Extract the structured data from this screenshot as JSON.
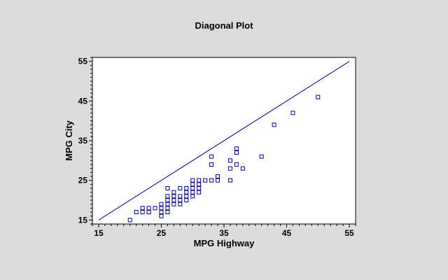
{
  "chart_data": {
    "type": "scatter",
    "title": "Diagonal Plot",
    "xlabel": "MPG Highway",
    "ylabel": "MPG City",
    "xlim": [
      14,
      56
    ],
    "ylim": [
      14,
      56
    ],
    "xticks": [
      "15",
      "25",
      "35",
      "45",
      "55"
    ],
    "yticks": [
      "15",
      "25",
      "35",
      "45",
      "55"
    ],
    "grid": false,
    "legend": "none",
    "diagonal": {
      "from": [
        15,
        15
      ],
      "to": [
        55,
        55
      ]
    },
    "series": [
      {
        "points": [
          [
            20,
            15
          ],
          [
            21,
            17
          ],
          [
            22,
            17
          ],
          [
            22,
            18
          ],
          [
            23,
            17
          ],
          [
            23,
            18
          ],
          [
            24,
            18
          ],
          [
            25,
            16
          ],
          [
            25,
            17
          ],
          [
            25,
            18
          ],
          [
            25,
            19
          ],
          [
            26,
            17
          ],
          [
            26,
            18
          ],
          [
            26,
            19
          ],
          [
            26,
            20
          ],
          [
            26,
            21
          ],
          [
            26,
            23
          ],
          [
            27,
            19
          ],
          [
            27,
            20
          ],
          [
            27,
            21
          ],
          [
            27,
            22
          ],
          [
            28,
            19
          ],
          [
            28,
            20
          ],
          [
            28,
            21
          ],
          [
            28,
            23
          ],
          [
            29,
            20
          ],
          [
            29,
            21
          ],
          [
            29,
            22
          ],
          [
            29,
            23
          ],
          [
            30,
            21
          ],
          [
            30,
            22
          ],
          [
            30,
            23
          ],
          [
            30,
            24
          ],
          [
            30,
            25
          ],
          [
            31,
            22
          ],
          [
            31,
            23
          ],
          [
            31,
            24
          ],
          [
            31,
            25
          ],
          [
            32,
            25
          ],
          [
            33,
            25
          ],
          [
            33,
            29
          ],
          [
            33,
            31
          ],
          [
            34,
            25
          ],
          [
            34,
            26
          ],
          [
            36,
            25
          ],
          [
            36,
            28
          ],
          [
            36,
            30
          ],
          [
            37,
            29
          ],
          [
            37,
            32
          ],
          [
            37,
            33
          ],
          [
            38,
            28
          ],
          [
            41,
            31
          ],
          [
            43,
            39
          ],
          [
            46,
            42
          ],
          [
            50,
            46
          ]
        ]
      }
    ]
  },
  "colors": {
    "background": "#dcdcdc",
    "plot_background": "#ffffff",
    "points": "#00008b",
    "diagonal": "#00008b",
    "axes": "#000000"
  }
}
